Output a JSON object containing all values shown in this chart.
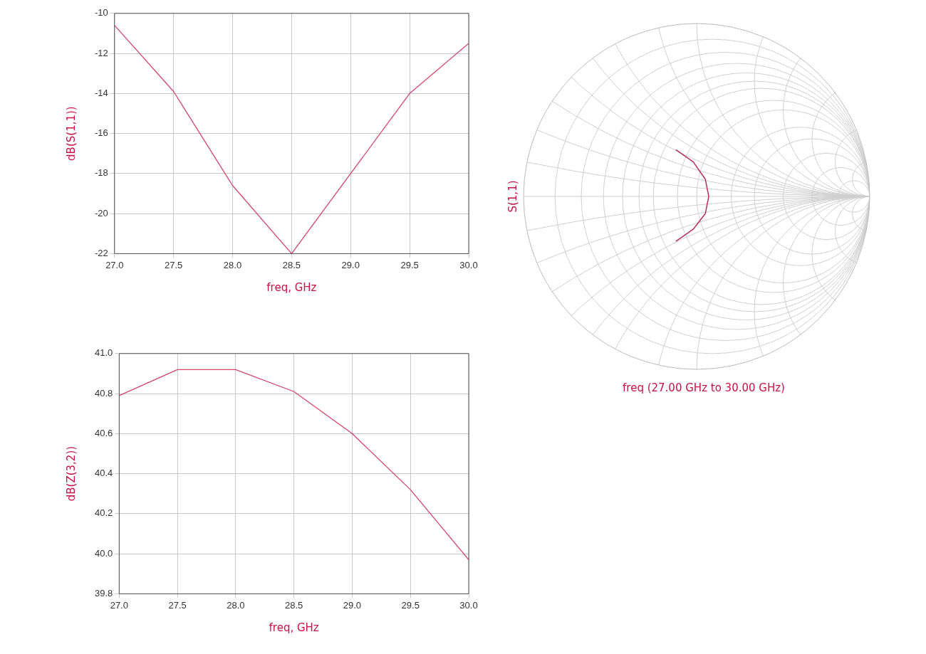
{
  "chart_data": [
    {
      "type": "line",
      "x": [
        27,
        27.5,
        28,
        28.5,
        29,
        29.5,
        30
      ],
      "values": [
        -10.6,
        -13.9,
        -18.6,
        -22.0,
        -18.0,
        -14.0,
        -11.5
      ],
      "color": "#d6456a",
      "xlim": [
        27,
        30
      ],
      "xticks": [
        {
          "value": 27,
          "label": "27.0"
        },
        27.5,
        {
          "value": 28,
          "label": "28.0"
        },
        28.5,
        {
          "value": 29,
          "label": "29.0"
        },
        29.5,
        {
          "value": 30,
          "label": "30.0"
        }
      ],
      "ylim": [
        -22,
        -10
      ],
      "yticks": [
        -22,
        -20,
        -18,
        -16,
        -14,
        -12,
        -10
      ],
      "xlabel": "freq, GHz",
      "ylabel": "dB(S(1,1))",
      "grid": true
    },
    {
      "type": "line",
      "x": [
        27,
        27.5,
        28,
        28.5,
        29,
        29.5,
        30
      ],
      "values": [
        40.79,
        40.92,
        40.92,
        40.81,
        40.6,
        40.32,
        39.97
      ],
      "color": "#d6456a",
      "xlim": [
        27,
        30
      ],
      "xticks": [
        {
          "value": 27,
          "label": "27.0"
        },
        27.5,
        {
          "value": 28,
          "label": "28.0"
        },
        28.5,
        {
          "value": 29,
          "label": "29.0"
        },
        29.5,
        {
          "value": 30,
          "label": "30.0"
        }
      ],
      "ylim": [
        39.8,
        41.0
      ],
      "yticks": [
        39.8,
        {
          "value": 40,
          "label": "40.0"
        },
        40.2,
        40.4,
        40.6,
        40.8,
        {
          "value": 41,
          "label": "41.0"
        }
      ],
      "xlabel": "freq, GHz",
      "ylabel": "dB(Z(3,2))",
      "grid": true
    },
    {
      "type": "other",
      "xlabel": "freq (27.00 GHz to 30.00 GHz)",
      "ylabel": "S(1,1)"
    }
  ]
}
